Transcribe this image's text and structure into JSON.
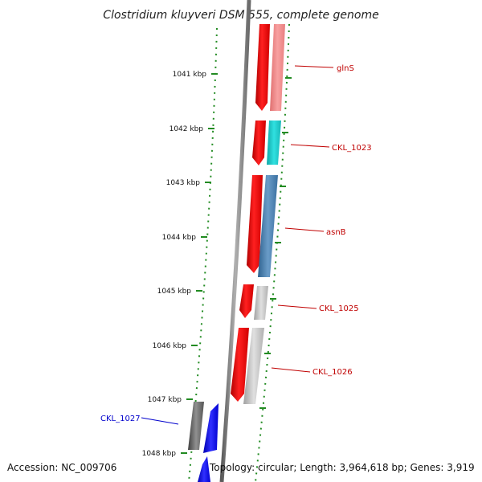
{
  "title": "Clostridium kluyveri DSM 555, complete genome",
  "ticks": [
    "1041 kbp",
    "1042 kbp",
    "1043 kbp",
    "1044 kbp",
    "1045 kbp",
    "1046 kbp",
    "1047 kbp",
    "1048 kbp"
  ],
  "genes_forward": [
    {
      "label": "glnS",
      "color": "#f08080"
    },
    {
      "label": "CKL_1023",
      "color": "#20c8c8"
    },
    {
      "label": "asnB",
      "color": "#4682b4"
    },
    {
      "label": "CKL_1025",
      "color": "#c0c0c0"
    },
    {
      "label": "CKL_1026",
      "color": "#c0c0c0"
    }
  ],
  "genes_reverse": [
    {
      "label": "CKL_1027",
      "color": "#0000ff"
    }
  ],
  "colors": {
    "backbone": "#808080",
    "forward_strand": "#ff0000",
    "reverse_strand": "#0000ff",
    "tick": "#228b22",
    "label_forward": "#c00000",
    "label_reverse": "#0000cc"
  },
  "footer": {
    "accession": "Accession: NC_009706",
    "summary": "Topology: circular; Length: 3,964,618 bp; Genes: 3,919"
  }
}
